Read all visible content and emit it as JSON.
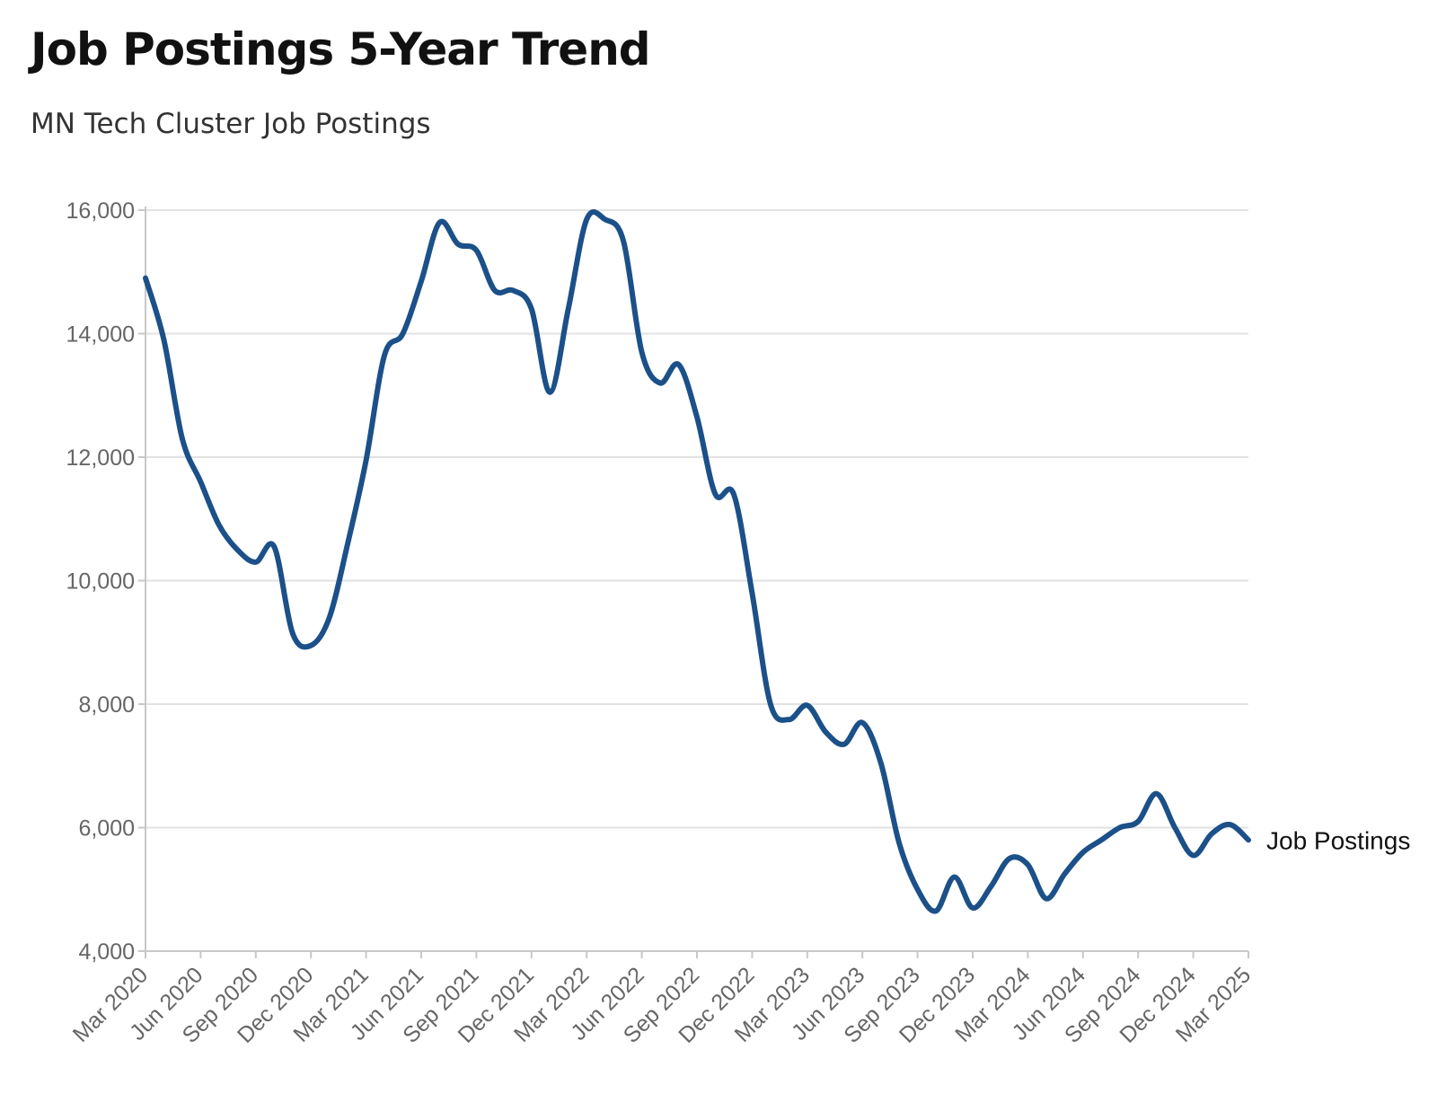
{
  "chart_data": {
    "type": "line",
    "title": "Job Postings 5-Year Trend",
    "subtitle": "MN Tech Cluster Job Postings",
    "xlabel": "",
    "ylabel": "",
    "ylim": [
      4000,
      16000
    ],
    "y_ticks": [
      {
        "value": 4000,
        "label": "4,000"
      },
      {
        "value": 6000,
        "label": "6,000"
      },
      {
        "value": 8000,
        "label": "8,000"
      },
      {
        "value": 10000,
        "label": "10,000"
      },
      {
        "value": 12000,
        "label": "12,000"
      },
      {
        "value": 14000,
        "label": "14,000"
      },
      {
        "value": 16000,
        "label": "16,000"
      }
    ],
    "x_ticks": [
      "Mar 2020",
      "Jun 2020",
      "Sep 2020",
      "Dec 2020",
      "Mar 2021",
      "Jun 2021",
      "Sep 2021",
      "Dec 2021",
      "Mar 2022",
      "Jun 2022",
      "Sep 2022",
      "Dec 2022",
      "Mar 2023",
      "Jun 2023",
      "Sep 2023",
      "Dec 2023",
      "Mar 2024",
      "Jun 2024",
      "Sep 2024",
      "Dec 2024",
      "Mar 2025"
    ],
    "grid": true,
    "series_color": "#1b5089",
    "categories": [
      "Mar 2020",
      "Apr 2020",
      "May 2020",
      "Jun 2020",
      "Jul 2020",
      "Aug 2020",
      "Sep 2020",
      "Oct 2020",
      "Nov 2020",
      "Dec 2020",
      "Jan 2021",
      "Feb 2021",
      "Mar 2021",
      "Apr 2021",
      "May 2021",
      "Jun 2021",
      "Jul 2021",
      "Aug 2021",
      "Sep 2021",
      "Oct 2021",
      "Nov 2021",
      "Dec 2021",
      "Jan 2022",
      "Feb 2022",
      "Mar 2022",
      "Apr 2022",
      "May 2022",
      "Jun 2022",
      "Jul 2022",
      "Aug 2022",
      "Sep 2022",
      "Oct 2022",
      "Nov 2022",
      "Dec 2022",
      "Jan 2023",
      "Feb 2023",
      "Mar 2023",
      "Apr 2023",
      "May 2023",
      "Jun 2023",
      "Jul 2023",
      "Aug 2023",
      "Sep 2023",
      "Oct 2023",
      "Nov 2023",
      "Dec 2023",
      "Jan 2024",
      "Feb 2024",
      "Mar 2024",
      "Apr 2024",
      "May 2024",
      "Jun 2024",
      "Jul 2024",
      "Aug 2024",
      "Sep 2024",
      "Oct 2024",
      "Nov 2024",
      "Dec 2024",
      "Jan 2025",
      "Feb 2025",
      "Mar 2025"
    ],
    "series": [
      {
        "name": "Job Postings",
        "values": [
          14900,
          13900,
          12300,
          11600,
          10900,
          10500,
          10300,
          10550,
          9150,
          8950,
          9400,
          10600,
          11950,
          13650,
          14000,
          14850,
          15800,
          15450,
          15350,
          14700,
          14700,
          14400,
          13050,
          14400,
          15850,
          15850,
          15500,
          13700,
          13200,
          13500,
          12650,
          11400,
          11400,
          9800,
          8000,
          7750,
          7980,
          7550,
          7350,
          7700,
          7050,
          5750,
          5000,
          4650,
          5200,
          4700,
          5050,
          5500,
          5400,
          4850,
          5250,
          5600,
          5800,
          6000,
          6100,
          6550,
          6000,
          5550,
          5900,
          6050,
          5800
        ]
      }
    ]
  }
}
